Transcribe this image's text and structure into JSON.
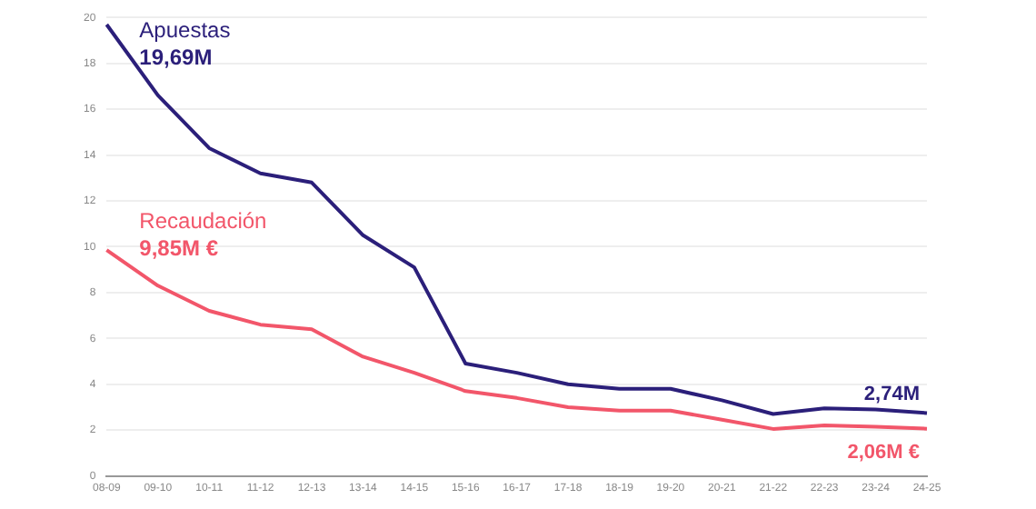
{
  "chart_data": {
    "type": "line",
    "categories": [
      "08-09",
      "09-10",
      "10-11",
      "11-12",
      "12-13",
      "13-14",
      "14-15",
      "15-16",
      "16-17",
      "17-18",
      "18-19",
      "19-20",
      "20-21",
      "21-22",
      "22-23",
      "23-24",
      "24-25"
    ],
    "series": [
      {
        "name": "Apuestas",
        "color": "#2b1f7a",
        "values": [
          19.69,
          16.6,
          14.3,
          13.2,
          12.8,
          10.5,
          9.1,
          4.9,
          4.5,
          4.0,
          3.8,
          3.8,
          3.3,
          2.7,
          2.95,
          2.9,
          2.74
        ]
      },
      {
        "name": "Recaudación",
        "color": "#f2566a",
        "values": [
          9.85,
          8.3,
          7.2,
          6.6,
          6.4,
          5.2,
          4.5,
          3.7,
          3.4,
          3.0,
          2.85,
          2.85,
          2.45,
          2.05,
          2.2,
          2.15,
          2.06
        ]
      }
    ],
    "annotations": [
      {
        "text": "19,69M",
        "x": "08-09",
        "y": 19.69
      },
      {
        "text": "9,85M €",
        "x": "08-09",
        "y": 9.85
      },
      {
        "text": "2,74M",
        "x": "24-25",
        "y": 2.74
      },
      {
        "text": "2,06M €",
        "x": "24-25",
        "y": 2.06
      }
    ],
    "ylim": [
      0,
      20
    ],
    "yticks": [
      0,
      2,
      4,
      6,
      8,
      10,
      12,
      14,
      16,
      18,
      20
    ],
    "grid": "y",
    "legend": false,
    "marker": "none",
    "line_style": "solid"
  }
}
